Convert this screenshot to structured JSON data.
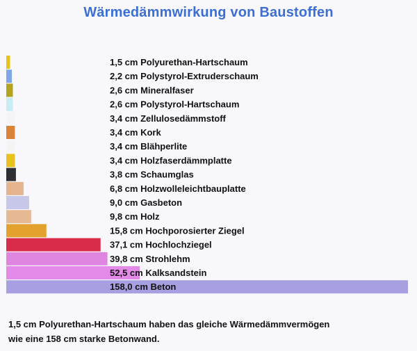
{
  "title": "Wärmedämmwirkung von Baustoffen",
  "caption_line1": "1,5 cm Polyurethan-Hartschaum haben das gleiche Wärmedämmvermögen",
  "caption_line2": "wie eine 158 cm starke Betonwand.",
  "chart_data": {
    "type": "bar",
    "orientation": "horizontal",
    "title": "Wärmedämmwirkung von Baustoffen",
    "unit": "cm",
    "categories": [
      "1,5 cm Polyurethan-Hartschaum",
      "2,2 cm Polystyrol-Extruderschaum",
      "2,6 cm Mineralfaser",
      "2,6 cm Polystyrol-Hartschaum",
      "3,4 cm Zellulosedämmstoff",
      "3,4 cm Kork",
      "3,4 cm Blähperlite",
      "3,4 cm Holzfaserdämmplatte",
      "3,8 cm Schaumglas",
      "6,8 cm Holzwolleleichtbauplatte",
      "9,0 cm Gasbeton",
      "9,8 cm Holz",
      "15,8 cm Hochporosierter Ziegel",
      "37,1 cm Hochlochziegel",
      "39,8 cm Strohlehm",
      "52,5 cm Kalksandstein",
      "158,0 cm Beton"
    ],
    "values": [
      1.5,
      2.2,
      2.6,
      2.6,
      3.4,
      3.4,
      3.4,
      3.4,
      3.8,
      6.8,
      9.0,
      9.8,
      15.8,
      37.1,
      39.8,
      52.5,
      158.0
    ],
    "colors": [
      "#e6c319",
      "#7fa6e6",
      "#b3a31e",
      "#c8ecf4",
      "#f4f4f8",
      "#d9843a",
      "#f4f4f4",
      "#e8c21c",
      "#2f2f33",
      "#e5b48c",
      "#c7c7ea",
      "#e6b894",
      "#e3a22e",
      "#d92b4a",
      "#de85e0",
      "#e38ae8",
      "#a6a0e0"
    ]
  }
}
